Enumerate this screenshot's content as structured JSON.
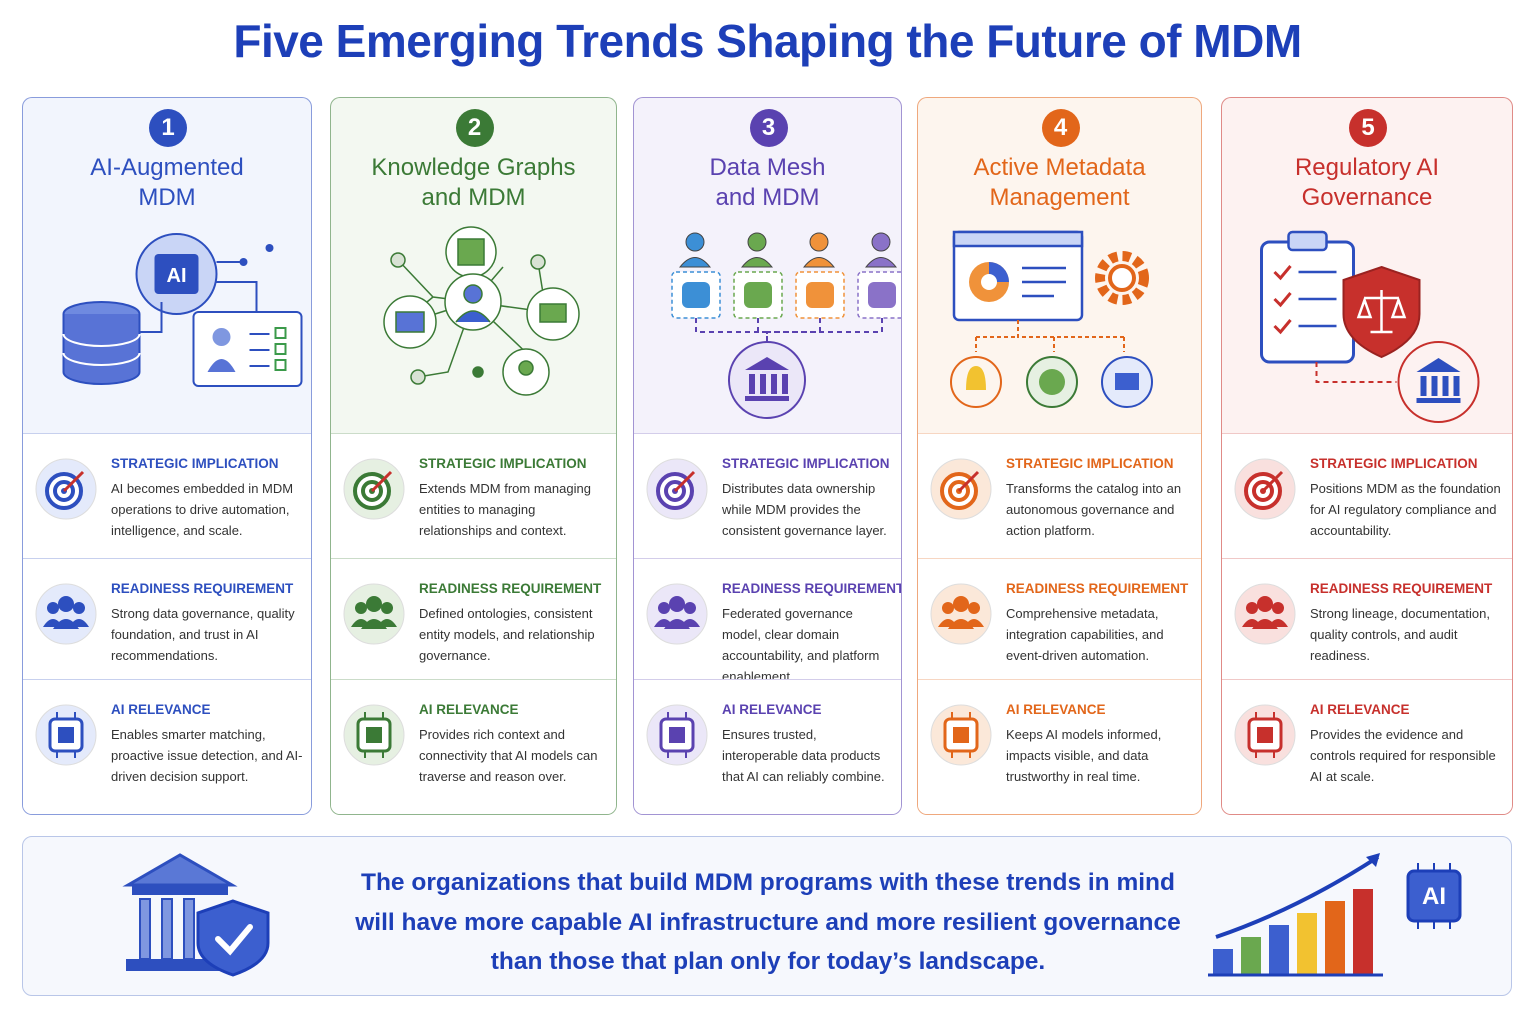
{
  "title": "Five Emerging Trends Shaping the Future of MDM",
  "cards": [
    {
      "number": "1",
      "title": [
        "AI-Augmented",
        "MDM"
      ],
      "color": "#2d4fbf",
      "badge": "AI",
      "sections": [
        {
          "heading": "STRATEGIC IMPLICATION",
          "text": "AI becomes embedded in MDM operations to drive automation, intelligence, and scale."
        },
        {
          "heading": "READINESS REQUIREMENT",
          "text": "Strong data governance, quality foundation, and trust in AI recommendations."
        },
        {
          "heading": "AI RELEVANCE",
          "text": "Enables smarter matching, proactive issue detection, and AI-driven decision support."
        }
      ]
    },
    {
      "number": "2",
      "title": [
        "Knowledge Graphs",
        "and MDM"
      ],
      "color": "#3b7a36",
      "sections": [
        {
          "heading": "STRATEGIC IMPLICATION",
          "text": "Extends MDM from managing entities to managing relationships and context."
        },
        {
          "heading": "READINESS REQUIREMENT",
          "text": "Defined ontologies, consistent entity models, and relationship governance."
        },
        {
          "heading": "AI RELEVANCE",
          "text": "Provides rich context and connectivity that AI models can traverse and reason over."
        }
      ]
    },
    {
      "number": "3",
      "title": [
        "Data Mesh",
        "and MDM"
      ],
      "color": "#5a42b0",
      "sections": [
        {
          "heading": "STRATEGIC IMPLICATION",
          "text": "Distributes data ownership while MDM provides the consistent governance layer."
        },
        {
          "heading": "READINESS REQUIREMENT",
          "text": "Federated governance model, clear domain accountability, and platform enablement."
        },
        {
          "heading": "AI RELEVANCE",
          "text": "Ensures trusted, interoperable data products that AI can reliably combine."
        }
      ]
    },
    {
      "number": "4",
      "title": [
        "Active Metadata",
        "Management"
      ],
      "color": "#e2661a",
      "sections": [
        {
          "heading": "STRATEGIC IMPLICATION",
          "text": "Transforms the catalog into an autonomous governance and action platform."
        },
        {
          "heading": "READINESS REQUIREMENT",
          "text": "Comprehensive metadata, integration capabilities, and event-driven automation."
        },
        {
          "heading": "AI RELEVANCE",
          "text": "Keeps AI models informed, impacts visible, and data trustworthy in real time."
        }
      ]
    },
    {
      "number": "5",
      "title": [
        "Regulatory AI",
        "Governance"
      ],
      "color": "#c7302c",
      "sections": [
        {
          "heading": "STRATEGIC IMPLICATION",
          "text": "Positions MDM as the foundation for AI regulatory compliance and accountability."
        },
        {
          "heading": "READINESS REQUIREMENT",
          "text": "Strong lineage, documentation, quality controls, and audit readiness."
        },
        {
          "heading": "AI RELEVANCE",
          "text": "Provides the evidence and controls required for responsible AI at scale."
        }
      ]
    }
  ],
  "footer": {
    "lines": [
      "The organizations that build MDM programs with these trends in mind",
      "will have more capable AI infrastructure and more resilient governance",
      "than those that plan only for today’s landscape."
    ],
    "badge": "AI"
  }
}
